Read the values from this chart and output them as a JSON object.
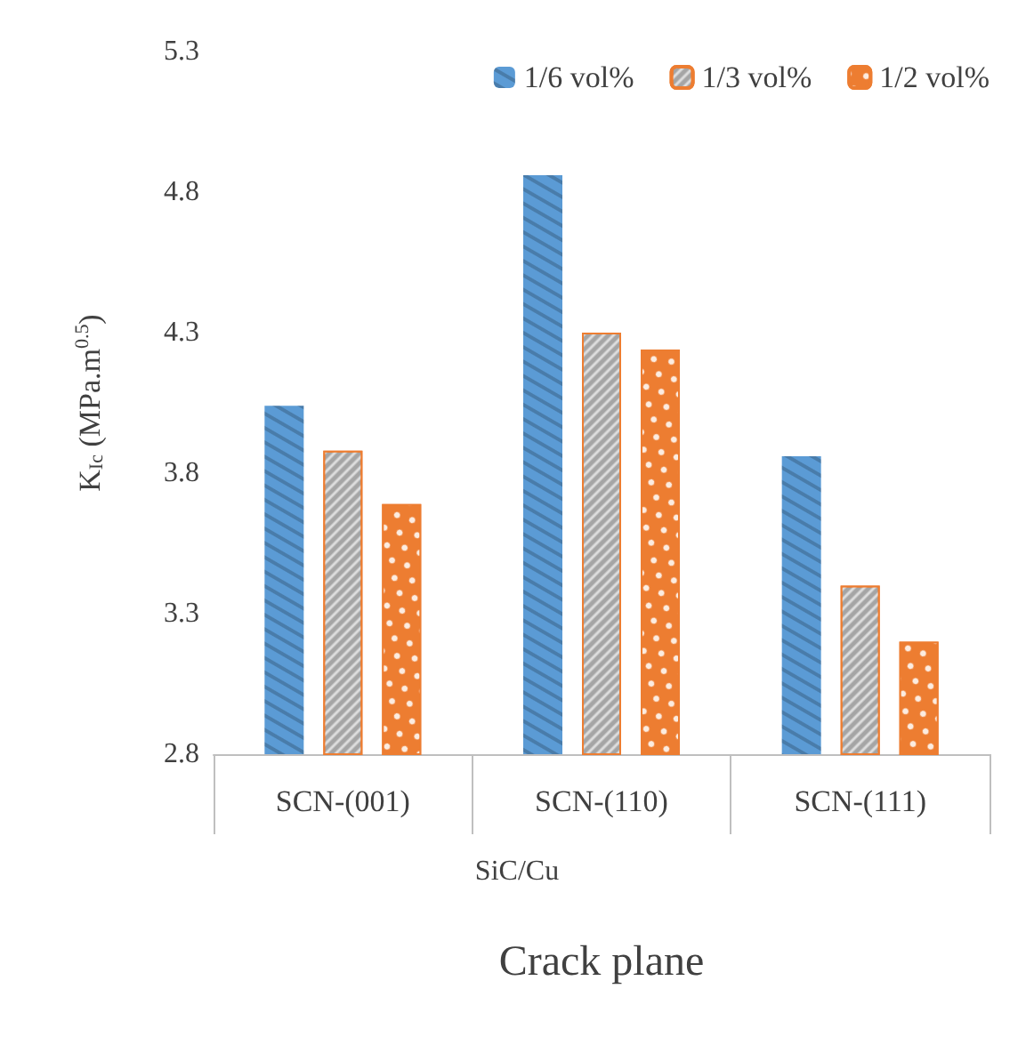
{
  "chart_data": {
    "type": "bar",
    "xlabel": "Crack plane",
    "ylabel": "K$_{Ic}$ (MPa.m$^{0.5}$)",
    "annotations": [
      "SiC/Cu"
    ],
    "categories": [
      "SCN-(001)",
      "SCN-(110)",
      "SCN-(111)"
    ],
    "series": [
      {
        "name": "1/6 vol%",
        "color": "#5b9bd5",
        "values": [
          4.04,
          4.86,
          3.86
        ]
      },
      {
        "name": "1/3 vol%",
        "color": "#a5a5a5",
        "values": [
          3.88,
          4.3,
          3.4
        ]
      },
      {
        "name": "1/2 vol%",
        "color": "#ed7d31",
        "values": [
          3.69,
          4.24,
          3.2
        ]
      }
    ],
    "ylim": [
      2.8,
      5.3
    ],
    "yticks": [
      2.8,
      3.3,
      3.8,
      4.3,
      4.8,
      5.3
    ],
    "grid": false,
    "legend": "top right"
  }
}
